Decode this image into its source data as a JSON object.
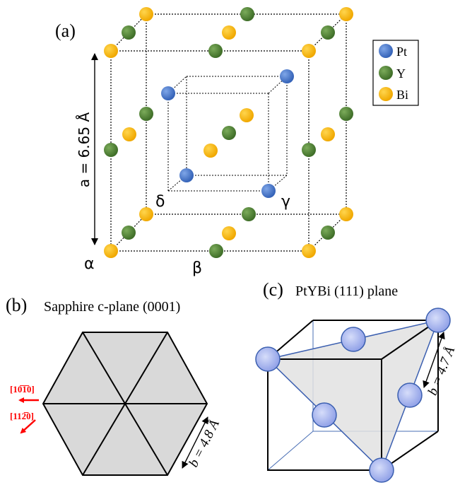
{
  "panel_a": {
    "label": "(a)",
    "lattice_label": "a = 6.65 Å",
    "corners": {
      "alpha": "α",
      "beta": "β",
      "gamma": "γ",
      "delta": "δ"
    },
    "legend": [
      {
        "name": "Pt",
        "color": "#4472c4"
      },
      {
        "name": "Y",
        "color": "#548235"
      },
      {
        "name": "Bi",
        "color": "#ffc000"
      }
    ]
  },
  "panel_b": {
    "label": "(b)",
    "title": "Sapphire c-plane (0001)",
    "direction_1": "[10̅1̅0]",
    "direction_2": "[112̅0]",
    "lattice_label": "b = 4.8 Å",
    "fill_color": "#d9d9d9",
    "arrow_color": "#ff0000"
  },
  "panel_c": {
    "label": "(c)",
    "title": "PtYBi (111) plane",
    "lattice_label": "b = 4.7 Å",
    "atom_color": "#aab8f0",
    "plane_color": "#e2e2e2"
  }
}
